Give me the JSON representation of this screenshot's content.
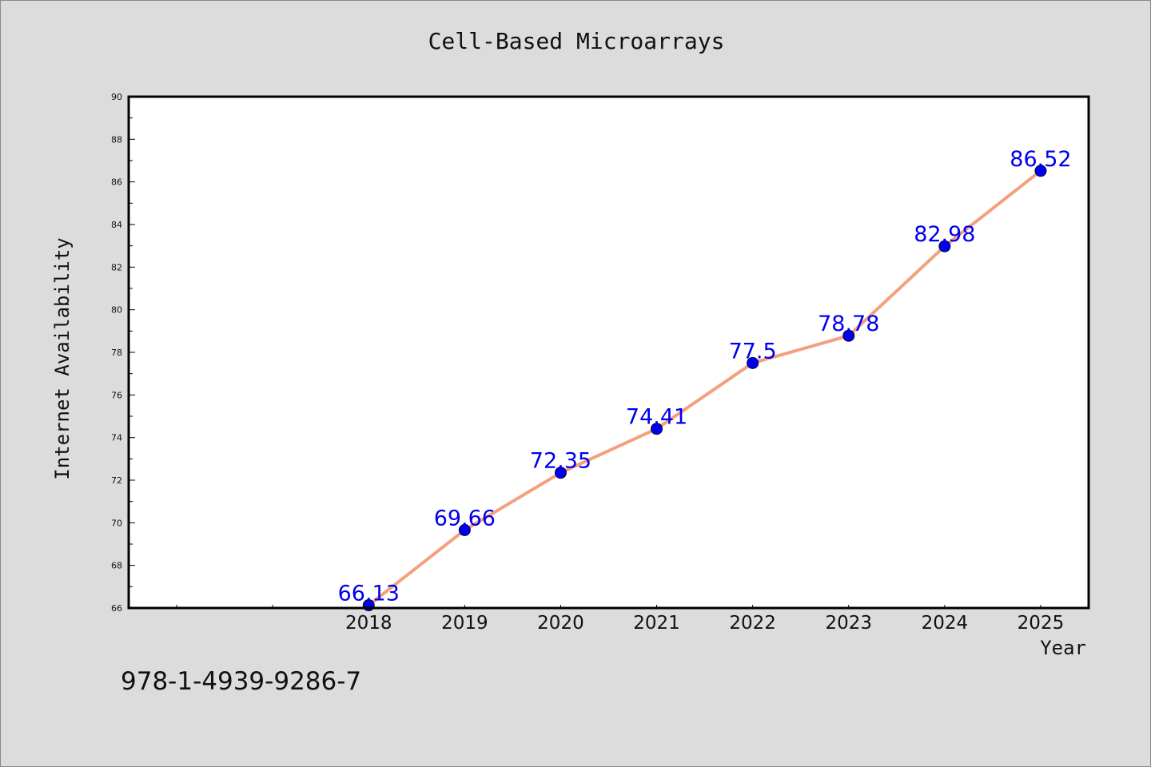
{
  "chart_data": {
    "type": "line",
    "title": "Cell-Based Microarrays",
    "xlabel": "Year",
    "ylabel": "Internet Availability",
    "x": [
      "2018",
      "2019",
      "2020",
      "2021",
      "2022",
      "2023",
      "2024",
      "2025"
    ],
    "x_slots": 10,
    "series": [
      {
        "values": [
          66.13,
          69.66,
          72.35,
          74.41,
          77.5,
          78.78,
          82.98,
          86.52
        ],
        "labels": [
          "66.13",
          "69.66",
          "72.35",
          "74.41",
          "77.5",
          "78.78",
          "82.98",
          "86.52"
        ],
        "line_color": "#f4a07f",
        "marker_color": "#0000ee"
      }
    ],
    "ylim": [
      66,
      90
    ],
    "y_ticks": [
      66,
      68,
      70,
      72,
      74,
      76,
      78,
      80,
      82,
      84,
      86,
      88,
      90
    ],
    "y_minor_step": 1,
    "grid": false,
    "legend": "none",
    "label_color": "#0000ee"
  },
  "footnote": "978-1-4939-9286-7"
}
